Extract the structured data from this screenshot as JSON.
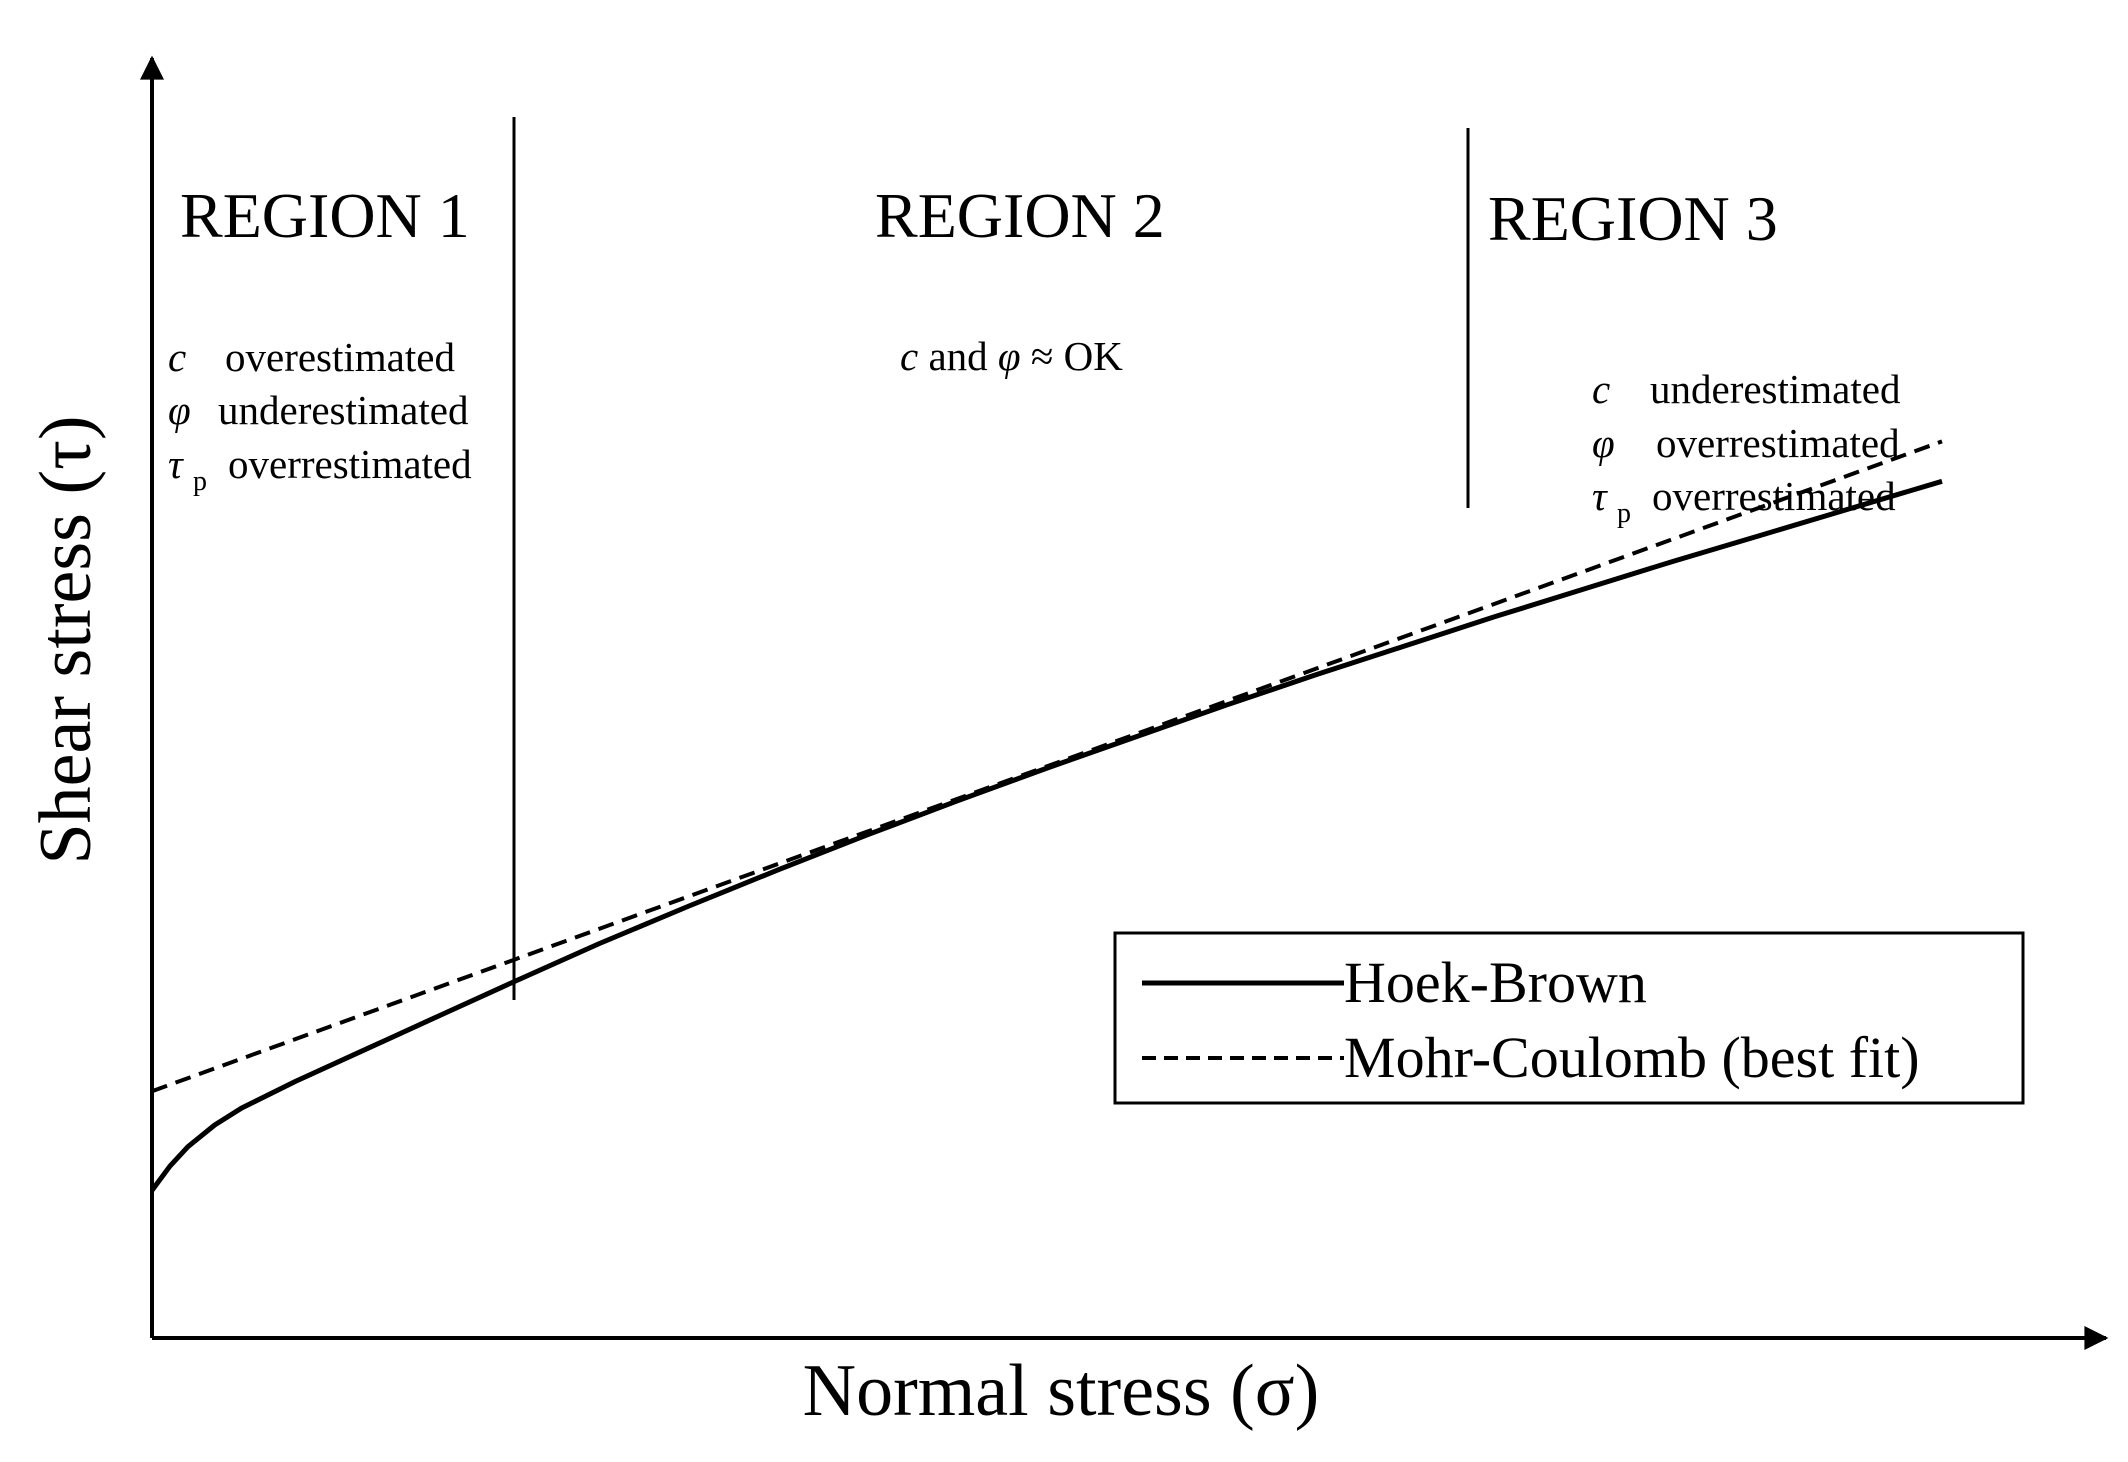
{
  "chart_data": {
    "type": "line",
    "title": "",
    "xlabel": "Normal stress (σ)",
    "ylabel": "Shear stress (τ)",
    "xlim": [
      0,
      1
    ],
    "ylim": [
      0,
      1
    ],
    "grid": false,
    "legend_position": "lower-right",
    "series": [
      {
        "name": "Hoek-Brown",
        "style": "solid",
        "x": [
          0.0,
          0.01,
          0.02,
          0.035,
          0.05,
          0.08,
          0.12,
          0.16,
          0.2,
          0.25,
          0.3,
          0.35,
          0.4,
          0.45,
          0.5,
          0.55,
          0.6,
          0.65,
          0.7,
          0.75,
          0.8,
          0.85,
          0.9,
          0.95,
          1.0
        ],
        "y": [
          0.122,
          0.142,
          0.158,
          0.176,
          0.19,
          0.212,
          0.239,
          0.266,
          0.293,
          0.326,
          0.357,
          0.387,
          0.416,
          0.444,
          0.471,
          0.497,
          0.523,
          0.548,
          0.572,
          0.596,
          0.619,
          0.642,
          0.664,
          0.686,
          0.708
        ]
      },
      {
        "name": "Mohr-Coulomb (best fit)",
        "style": "dashed",
        "x": [
          0.0,
          1.0
        ],
        "y": [
          0.204,
          0.741
        ]
      }
    ],
    "regions": [
      {
        "label": "REGION 1",
        "x_end": 0.2,
        "notes": [
          {
            "symbol": "c",
            "sub": "",
            "text": "overestimated"
          },
          {
            "symbol": "φ",
            "sub": "",
            "text": "underestimated"
          },
          {
            "symbol": "τ",
            "sub": "p",
            "text": "overrestimated"
          }
        ]
      },
      {
        "label": "REGION 2",
        "x_end": 0.732,
        "notes_line": {
          "c": "c",
          "and": " and ",
          "phi": "φ",
          "rest": " ≈ OK"
        }
      },
      {
        "label": "REGION 3",
        "notes": [
          {
            "symbol": "c",
            "sub": "",
            "text": "underestimated"
          },
          {
            "symbol": "φ",
            "sub": "",
            "text": "overrestimated"
          },
          {
            "symbol": "τ",
            "sub": "p",
            "text": "overrestimated"
          }
        ]
      }
    ],
    "legend": [
      {
        "label": "Hoek-Brown",
        "style": "solid"
      },
      {
        "label": "Mohr-Coulomb (best fit)",
        "style": "dashed"
      }
    ]
  }
}
